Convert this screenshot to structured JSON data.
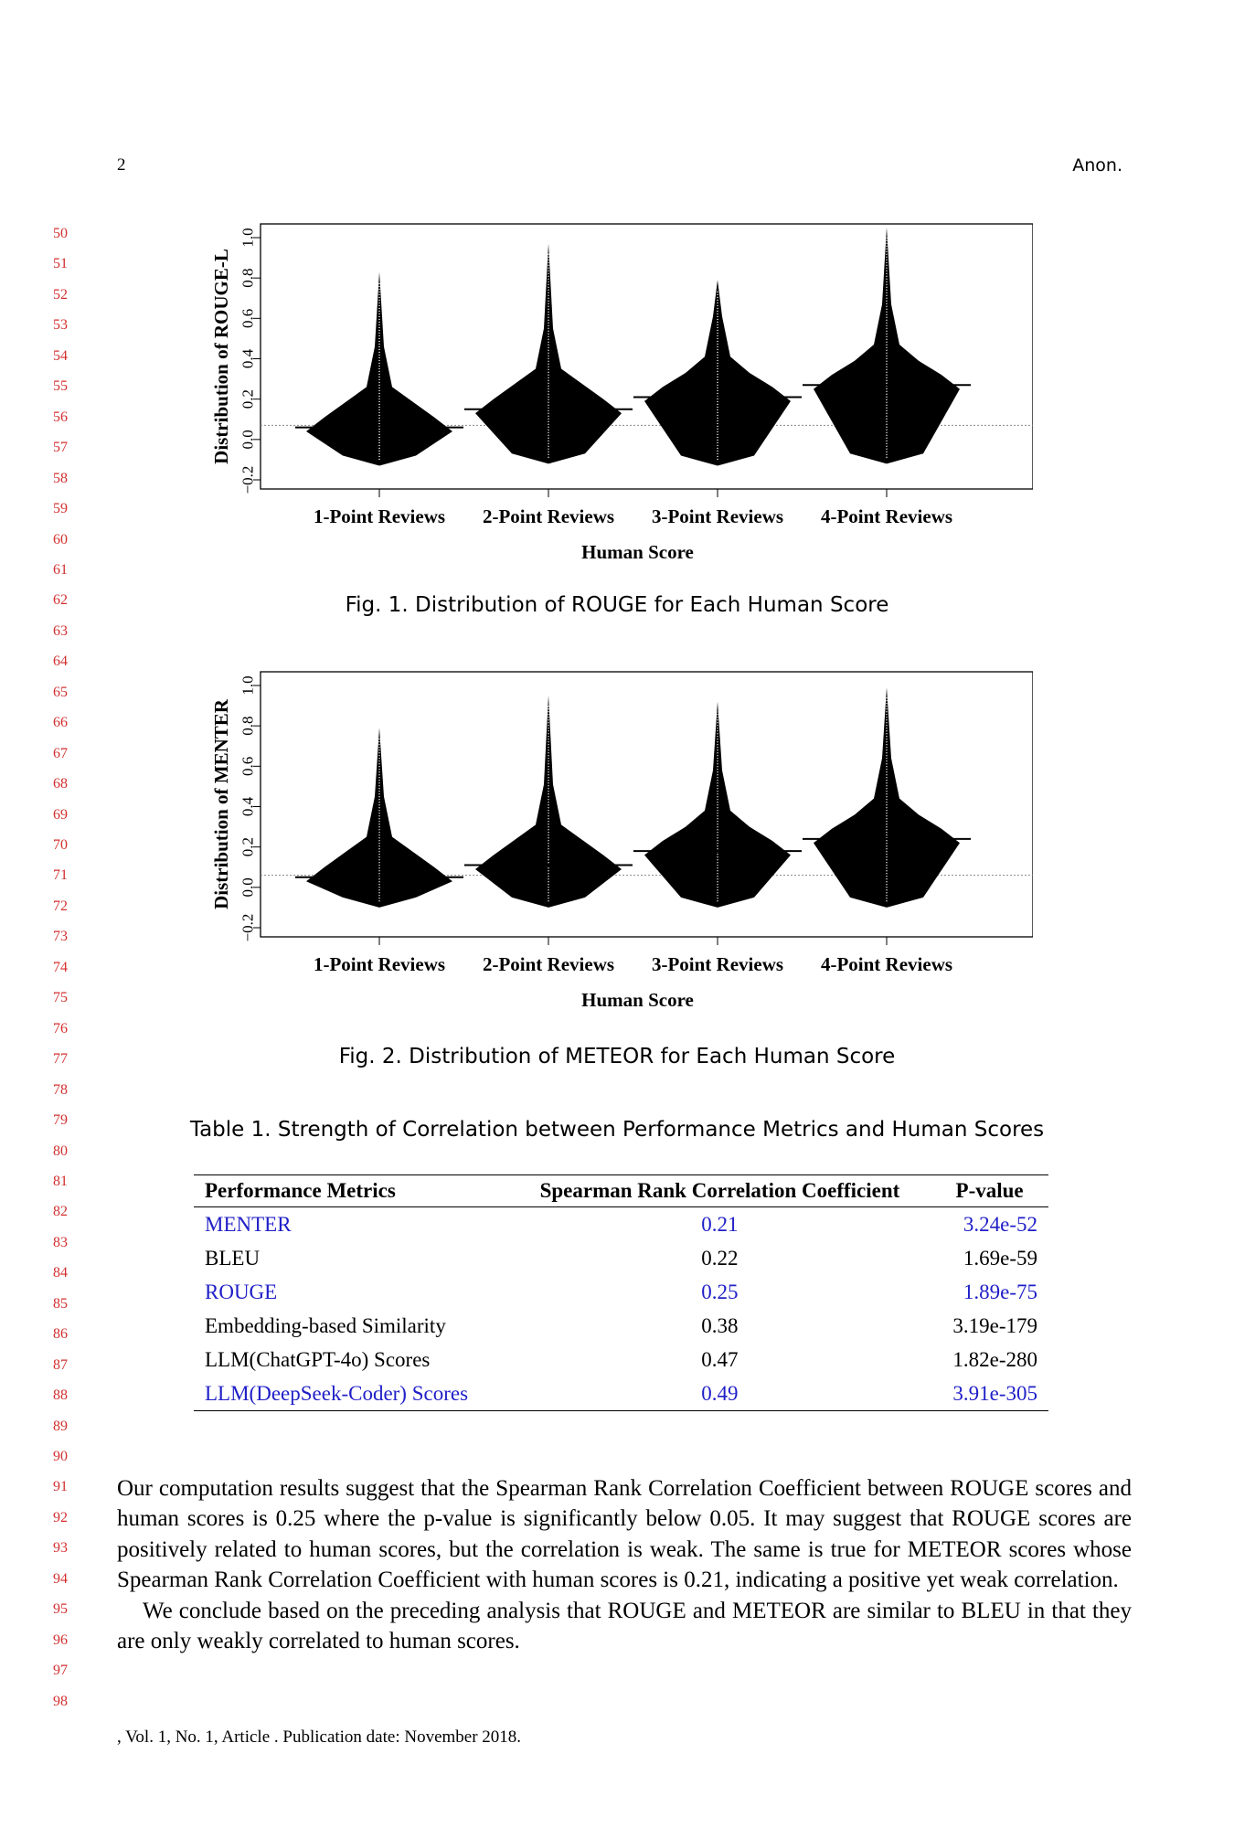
{
  "header": {
    "page_number": "2",
    "running_head": "Anon."
  },
  "line_numbers": [
    "50",
    "51",
    "52",
    "53",
    "54",
    "55",
    "56",
    "57",
    "58",
    "59",
    "60",
    "61",
    "62",
    "63",
    "64",
    "65",
    "66",
    "67",
    "68",
    "69",
    "70",
    "71",
    "72",
    "73",
    "74",
    "75",
    "76",
    "77",
    "78",
    "79",
    "80",
    "81",
    "82",
    "83",
    "84",
    "85",
    "86",
    "87",
    "88",
    "89",
    "90",
    "91",
    "92",
    "93",
    "94",
    "95",
    "96",
    "97",
    "98"
  ],
  "figures": [
    {
      "caption": "Fig. 1.  Distribution of ROUGE for Each Human Score",
      "ylabel": "Distribution of  ROUGE-L",
      "xlabel": "Human Score",
      "ytick_labels": [
        "−0.2",
        "0.0",
        "0.2",
        "0.4",
        "0.6",
        "0.8",
        "1.0"
      ]
    },
    {
      "caption": "Fig. 2.  Distribution of METEOR for Each Human Score",
      "ylabel": "Distribution of  MENTER",
      "xlabel": "Human Score",
      "ytick_labels": [
        "−0.2",
        "0.0",
        "0.2",
        "0.4",
        "0.6",
        "0.8",
        "1.0"
      ]
    }
  ],
  "chart_data": [
    {
      "type": "violin",
      "title": "",
      "xlabel": "Human Score",
      "ylabel": "Distribution of  ROUGE-L",
      "categories": [
        "1-Point Reviews",
        "2-Point Reviews",
        "3-Point Reviews",
        "4-Point Reviews"
      ],
      "ylim": [
        -0.2,
        1.0
      ],
      "yticks": [
        -0.2,
        0.0,
        0.2,
        0.4,
        0.6,
        0.8,
        1.0
      ],
      "means": [
        0.06,
        0.15,
        0.21,
        0.27
      ],
      "reference_line": 0.07,
      "ranges": [
        [
          -0.13,
          0.83
        ],
        [
          -0.12,
          0.97
        ],
        [
          -0.13,
          0.79
        ],
        [
          -0.12,
          1.05
        ]
      ],
      "grid": false
    },
    {
      "type": "violin",
      "title": "",
      "xlabel": "Human Score",
      "ylabel": "Distribution of  MENTER",
      "categories": [
        "1-Point Reviews",
        "2-Point Reviews",
        "3-Point Reviews",
        "4-Point Reviews"
      ],
      "ylim": [
        -0.2,
        1.0
      ],
      "yticks": [
        -0.2,
        0.0,
        0.2,
        0.4,
        0.6,
        0.8,
        1.0
      ],
      "means": [
        0.05,
        0.11,
        0.18,
        0.24
      ],
      "reference_line": 0.06,
      "ranges": [
        [
          -0.1,
          0.79
        ],
        [
          -0.1,
          0.95
        ],
        [
          -0.1,
          0.92
        ],
        [
          -0.1,
          0.99
        ]
      ],
      "grid": false
    }
  ],
  "table": {
    "caption": "Table 1.  Strength of Correlation between Performance Metrics and Human Scores",
    "headers": [
      "Performance Metrics",
      "Spearman Rank Correlation Coefficient",
      "P-value"
    ],
    "rows": [
      {
        "metric": "MENTER",
        "coef": "0.21",
        "p": "3.24e-52",
        "highlight": true
      },
      {
        "metric": "BLEU",
        "coef": "0.22",
        "p": "1.69e-59",
        "highlight": false
      },
      {
        "metric": "ROUGE",
        "coef": "0.25",
        "p": "1.89e-75",
        "highlight": true
      },
      {
        "metric": "Embedding-based Similarity",
        "coef": "0.38",
        "p": "3.19e-179",
        "highlight": false
      },
      {
        "metric": "LLM(ChatGPT-4o) Scores",
        "coef": "0.47",
        "p": "1.82e-280",
        "highlight": false
      },
      {
        "metric": "LLM(DeepSeek-Coder) Scores",
        "coef": "0.49",
        "p": "3.91e-305",
        "highlight": true
      }
    ],
    "highlight_color": "#2020c8"
  },
  "body": {
    "paragraph1": "Our computation results suggest that the Spearman Rank Correlation Coefficient between ROUGE scores and human scores is 0.25 where the p-value is significantly below 0.05. It may suggest that ROUGE scores are positively related to human scores, but the correlation is weak. The same is true for METEOR scores whose Spearman Rank Correlation Coefficient with human scores is 0.21, indicating a positive yet weak correlation.",
    "paragraph2": "We conclude based on the preceding analysis that ROUGE and METEOR are similar to BLEU in that they are only weakly correlated to human scores."
  },
  "footer": ", Vol. 1, No. 1, Article . Publication date: November 2018."
}
